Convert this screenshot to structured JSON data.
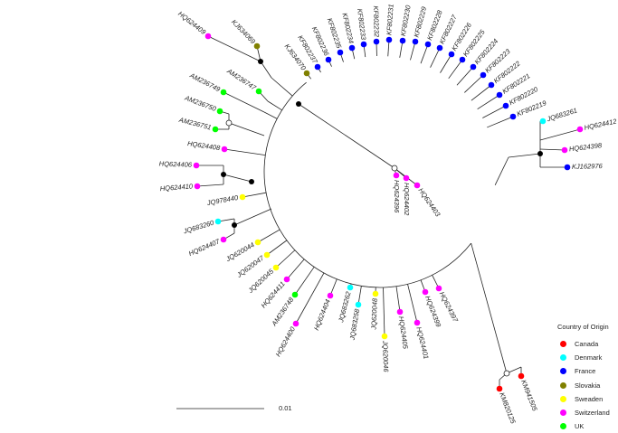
{
  "legend": {
    "title": "Country of Origin",
    "items": [
      {
        "label": "Canada",
        "color": "#ff0000"
      },
      {
        "label": "Denmark",
        "color": "#00ffff"
      },
      {
        "label": "France",
        "color": "#0000ff"
      },
      {
        "label": "Slovakia",
        "color": "#808000"
      },
      {
        "label": "Sweaden",
        "color": "#ffff00"
      },
      {
        "label": "Switzerland",
        "color": "#ff00ff"
      },
      {
        "label": "UK",
        "color": "#00ff00"
      }
    ]
  },
  "scale_bar": {
    "label": "0.01"
  },
  "tips": [
    {
      "label": "HQ624409",
      "country": "Switzerland"
    },
    {
      "label": "KJ634069",
      "country": "Slovakia"
    },
    {
      "label": "AM236747",
      "country": "UK"
    },
    {
      "label": "AM236749",
      "country": "UK"
    },
    {
      "label": "AM236750",
      "country": "UK"
    },
    {
      "label": "AM236751",
      "country": "UK"
    },
    {
      "label": "HQ624408",
      "country": "Switzerland"
    },
    {
      "label": "HQ624406",
      "country": "Switzerland"
    },
    {
      "label": "HQ624410",
      "country": "Switzerland"
    },
    {
      "label": "JQ978440",
      "country": "Sweaden"
    },
    {
      "label": "JQ683260",
      "country": "Denmark"
    },
    {
      "label": "HQ624407",
      "country": "Switzerland"
    },
    {
      "label": "JQ620044",
      "country": "Sweaden"
    },
    {
      "label": "JQ620047",
      "country": "Sweaden"
    },
    {
      "label": "JQ620045",
      "country": "Sweaden"
    },
    {
      "label": "HQ624411",
      "country": "Switzerland"
    },
    {
      "label": "AM236748",
      "country": "UK"
    },
    {
      "label": "HQ624400",
      "country": "Switzerland"
    },
    {
      "label": "HQ624404",
      "country": "Switzerland"
    },
    {
      "label": "JQ683262",
      "country": "Denmark"
    },
    {
      "label": "JQ683258",
      "country": "Denmark"
    },
    {
      "label": "JQ620048",
      "country": "Sweaden"
    },
    {
      "label": "JQ620046",
      "country": "Sweaden"
    },
    {
      "label": "HQ624405",
      "country": "Switzerland"
    },
    {
      "label": "HQ624401",
      "country": "Switzerland"
    },
    {
      "label": "HQ624399",
      "country": "Switzerland"
    },
    {
      "label": "HQ624397",
      "country": "Switzerland"
    },
    {
      "label": "KM820125",
      "country": "Canada"
    },
    {
      "label": "KM941505",
      "country": "Canada"
    },
    {
      "label": "KJ162976",
      "country": "France"
    },
    {
      "label": "HQ624398",
      "country": "Switzerland"
    },
    {
      "label": "HQ624412",
      "country": "Switzerland"
    },
    {
      "label": "JQ683261",
      "country": "Denmark"
    },
    {
      "label": "KF802219",
      "country": "France"
    },
    {
      "label": "KF802220",
      "country": "France"
    },
    {
      "label": "KF802221",
      "country": "France"
    },
    {
      "label": "KF802222",
      "country": "France"
    },
    {
      "label": "KF802223",
      "country": "France"
    },
    {
      "label": "KF802224",
      "country": "France"
    },
    {
      "label": "KF802225",
      "country": "France"
    },
    {
      "label": "KF802226",
      "country": "France"
    },
    {
      "label": "KF802227",
      "country": "France"
    },
    {
      "label": "KF802228",
      "country": "France"
    },
    {
      "label": "KF802229",
      "country": "France"
    },
    {
      "label": "KF802230",
      "country": "France"
    },
    {
      "label": "KF802231",
      "country": "France"
    },
    {
      "label": "KF802232",
      "country": "France"
    },
    {
      "label": "KF802233",
      "country": "France"
    },
    {
      "label": "KF802234",
      "country": "France"
    },
    {
      "label": "KF802235",
      "country": "France"
    },
    {
      "label": "KF802236",
      "country": "France"
    },
    {
      "label": "KF802237",
      "country": "France"
    },
    {
      "label": "KJ634070",
      "country": "Slovakia"
    },
    {
      "label": "HQ624396",
      "country": "Switzerland"
    },
    {
      "label": "HQ624402",
      "country": "Switzerland"
    },
    {
      "label": "HQ624403",
      "country": "Switzerland"
    }
  ]
}
